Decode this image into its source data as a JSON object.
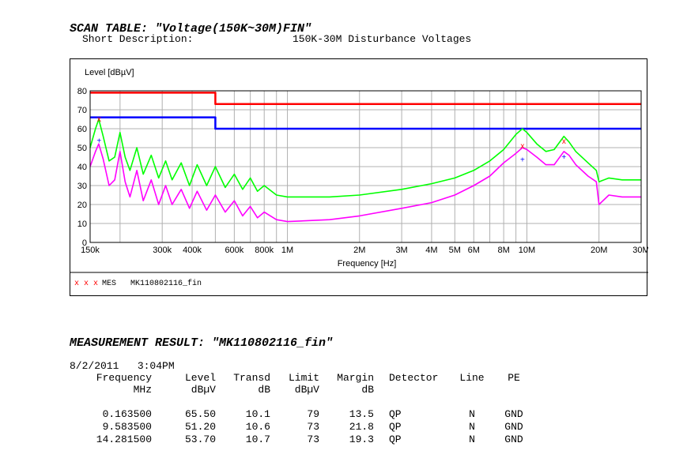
{
  "scan_table": {
    "title": "SCAN TABLE: \"Voltage(150K~30M)FIN\"",
    "short_description_label": "Short Description:",
    "short_description_value": "150K-30M Disturbance Voltages"
  },
  "chart_data": {
    "type": "line",
    "ylabel": "Level [dBµV]",
    "xlabel": "Frequency [Hz]",
    "x_scale": "log",
    "xlim": [
      0.15,
      30
    ],
    "ylim": [
      0,
      80
    ],
    "y_ticks": [
      "0",
      "10",
      "20",
      "30",
      "40",
      "50",
      "60",
      "70",
      "80"
    ],
    "x_ticks": [
      {
        "value": 0.15,
        "label": "150k"
      },
      {
        "value": 0.3,
        "label": "300k"
      },
      {
        "value": 0.4,
        "label": "400k"
      },
      {
        "value": 0.6,
        "label": "600k"
      },
      {
        "value": 0.8,
        "label": "800k"
      },
      {
        "value": 1,
        "label": "1M"
      },
      {
        "value": 2,
        "label": "2M"
      },
      {
        "value": 3,
        "label": "3M"
      },
      {
        "value": 4,
        "label": "4M"
      },
      {
        "value": 5,
        "label": "5M"
      },
      {
        "value": 6,
        "label": "6M"
      },
      {
        "value": 8,
        "label": "8M"
      },
      {
        "value": 10,
        "label": "10M"
      },
      {
        "value": 20,
        "label": "20M"
      },
      {
        "value": 30,
        "label": "30M"
      }
    ],
    "grid": true,
    "series": [
      {
        "color": "#ff0000",
        "values": [
          [
            0.15,
            79
          ],
          [
            0.5,
            79
          ],
          [
            0.5,
            73
          ],
          [
            30,
            73
          ]
        ]
      },
      {
        "color": "#0000ff",
        "values": [
          [
            0.15,
            66
          ],
          [
            0.5,
            66
          ],
          [
            0.5,
            60
          ],
          [
            30,
            60
          ]
        ]
      },
      {
        "color": "#00ff00",
        "values": [
          [
            0.15,
            50
          ],
          [
            0.158,
            60
          ],
          [
            0.163,
            65
          ],
          [
            0.17,
            56
          ],
          [
            0.18,
            43
          ],
          [
            0.19,
            45
          ],
          [
            0.2,
            58
          ],
          [
            0.21,
            45
          ],
          [
            0.22,
            38
          ],
          [
            0.235,
            50
          ],
          [
            0.25,
            36
          ],
          [
            0.27,
            46
          ],
          [
            0.29,
            34
          ],
          [
            0.31,
            43
          ],
          [
            0.33,
            33
          ],
          [
            0.36,
            42
          ],
          [
            0.39,
            30
          ],
          [
            0.42,
            41
          ],
          [
            0.46,
            30
          ],
          [
            0.5,
            40
          ],
          [
            0.55,
            29
          ],
          [
            0.6,
            36
          ],
          [
            0.65,
            28
          ],
          [
            0.7,
            34
          ],
          [
            0.75,
            27
          ],
          [
            0.8,
            30
          ],
          [
            0.9,
            25
          ],
          [
            1,
            24
          ],
          [
            1.5,
            24
          ],
          [
            2,
            25
          ],
          [
            3,
            28
          ],
          [
            4,
            31
          ],
          [
            5,
            34
          ],
          [
            6,
            38
          ],
          [
            7,
            43
          ],
          [
            8,
            49
          ],
          [
            9,
            57
          ],
          [
            9.58,
            60
          ],
          [
            10,
            58
          ],
          [
            11,
            52
          ],
          [
            12,
            48
          ],
          [
            13,
            49
          ],
          [
            14.28,
            56
          ],
          [
            15,
            53
          ],
          [
            16,
            48
          ],
          [
            18,
            42
          ],
          [
            19.5,
            38
          ],
          [
            20,
            32
          ],
          [
            22,
            34
          ],
          [
            25,
            33
          ],
          [
            30,
            33
          ]
        ]
      },
      {
        "color": "#ff00ff",
        "values": [
          [
            0.15,
            40
          ],
          [
            0.158,
            48
          ],
          [
            0.163,
            52
          ],
          [
            0.17,
            44
          ],
          [
            0.18,
            30
          ],
          [
            0.19,
            33
          ],
          [
            0.2,
            48
          ],
          [
            0.21,
            32
          ],
          [
            0.22,
            24
          ],
          [
            0.235,
            38
          ],
          [
            0.25,
            22
          ],
          [
            0.27,
            33
          ],
          [
            0.29,
            20
          ],
          [
            0.31,
            30
          ],
          [
            0.33,
            20
          ],
          [
            0.36,
            28
          ],
          [
            0.39,
            18
          ],
          [
            0.42,
            27
          ],
          [
            0.46,
            17
          ],
          [
            0.5,
            25
          ],
          [
            0.55,
            16
          ],
          [
            0.6,
            22
          ],
          [
            0.65,
            14
          ],
          [
            0.7,
            19
          ],
          [
            0.75,
            13
          ],
          [
            0.8,
            16
          ],
          [
            0.9,
            12
          ],
          [
            1,
            11
          ],
          [
            1.5,
            12
          ],
          [
            2,
            14
          ],
          [
            3,
            18
          ],
          [
            4,
            21
          ],
          [
            5,
            25
          ],
          [
            6,
            30
          ],
          [
            7,
            35
          ],
          [
            8,
            42
          ],
          [
            9,
            47
          ],
          [
            9.58,
            50
          ],
          [
            10,
            49
          ],
          [
            11,
            45
          ],
          [
            12,
            41
          ],
          [
            13,
            41
          ],
          [
            14.28,
            48
          ],
          [
            15,
            46
          ],
          [
            16,
            41
          ],
          [
            18,
            35
          ],
          [
            19.5,
            32
          ],
          [
            20,
            20
          ],
          [
            22,
            25
          ],
          [
            25,
            24
          ],
          [
            30,
            24
          ]
        ]
      }
    ],
    "markers": [
      {
        "symbol": "x",
        "color": "#ff0000",
        "x": 0.1635,
        "y": 65.5
      },
      {
        "symbol": "x",
        "color": "#ff0000",
        "x": 9.5835,
        "y": 51.2
      },
      {
        "symbol": "x",
        "color": "#ff0000",
        "x": 14.2815,
        "y": 53.7
      },
      {
        "symbol": "+",
        "color": "#0000ff",
        "x": 0.1635,
        "y": 54.0
      },
      {
        "symbol": "+",
        "color": "#0000ff",
        "x": 9.5835,
        "y": 44.0
      },
      {
        "symbol": "+",
        "color": "#0000ff",
        "x": 14.2815,
        "y": 45.5
      }
    ],
    "legend_marks": "x x x",
    "legend_label": "MES",
    "legend_value": "MK110802116_fin"
  },
  "measurement": {
    "title": "MEASUREMENT RESULT: \"MK110802116_fin\"",
    "datetime": "8/2/2011   3:04PM",
    "headers": [
      {
        "line1": "Frequency",
        "line2": "MHz"
      },
      {
        "line1": "Level",
        "line2": "dBµV"
      },
      {
        "line1": "Transd",
        "line2": "dB"
      },
      {
        "line1": "Limit",
        "line2": "dBµV"
      },
      {
        "line1": "Margin",
        "line2": "dB"
      },
      {
        "line1": "Detector",
        "line2": ""
      },
      {
        "line1": "Line",
        "line2": ""
      },
      {
        "line1": "PE",
        "line2": ""
      }
    ],
    "rows": [
      [
        "0.163500",
        "65.50",
        "10.1",
        "79",
        "13.5",
        "QP",
        "N",
        "GND"
      ],
      [
        "9.583500",
        "51.20",
        "10.6",
        "73",
        "21.8",
        "QP",
        "N",
        "GND"
      ],
      [
        "14.281500",
        "53.70",
        "10.7",
        "73",
        "19.3",
        "QP",
        "N",
        "GND"
      ]
    ]
  }
}
